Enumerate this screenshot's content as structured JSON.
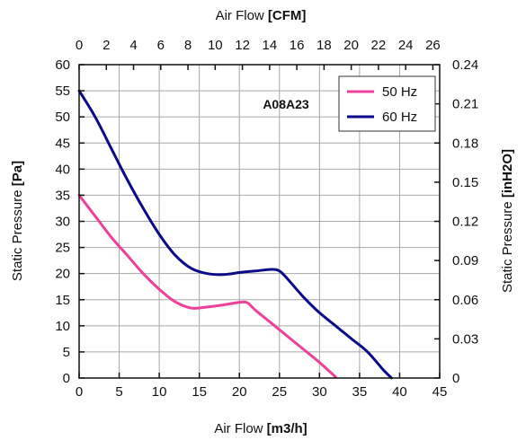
{
  "chart_data": {
    "type": "line",
    "title": "A08A23",
    "x_bottom": {
      "label": "Air Flow",
      "unit": "[m3/h]",
      "range": [
        0,
        45
      ],
      "ticks": [
        0,
        5,
        10,
        15,
        20,
        25,
        30,
        35,
        40,
        45
      ]
    },
    "x_top": {
      "label": "Air Flow",
      "unit": "[CFM]",
      "range": [
        0,
        26.5
      ],
      "ticks": [
        0,
        2,
        4,
        6,
        8,
        10,
        12,
        14,
        16,
        18,
        20,
        22,
        24,
        26
      ]
    },
    "y_left": {
      "label": "Static Pressure",
      "unit": "[Pa]",
      "range": [
        0,
        60
      ],
      "ticks": [
        0,
        5,
        10,
        15,
        20,
        25,
        30,
        35,
        40,
        45,
        50,
        55,
        60
      ]
    },
    "y_right": {
      "label": "Static Pressure",
      "unit": "[inH2O]",
      "range": [
        0,
        0.24
      ],
      "ticks": [
        "0",
        "0.03",
        "0.06",
        "0.09",
        "0.12",
        "0.15",
        "0.18",
        "0.21",
        "0.24"
      ]
    },
    "grid": true,
    "legend_position": "top-right",
    "series": [
      {
        "name": "50 Hz",
        "color": "#ee3f9a",
        "points": [
          [
            0,
            35
          ],
          [
            2,
            31
          ],
          [
            4,
            27
          ],
          [
            6,
            23.5
          ],
          [
            8,
            20
          ],
          [
            10,
            17
          ],
          [
            12,
            14.6
          ],
          [
            14,
            13.4
          ],
          [
            16,
            13.6
          ],
          [
            18,
            14
          ],
          [
            20,
            14.5
          ],
          [
            21,
            14.4
          ],
          [
            22,
            13
          ],
          [
            24,
            10.5
          ],
          [
            26,
            8
          ],
          [
            28,
            5.5
          ],
          [
            30,
            3
          ],
          [
            32,
            0.2
          ]
        ]
      },
      {
        "name": "60 Hz",
        "color": "#0a0a8a",
        "points": [
          [
            0,
            55
          ],
          [
            2,
            50
          ],
          [
            4,
            44
          ],
          [
            6,
            38
          ],
          [
            8,
            32.5
          ],
          [
            10,
            27.5
          ],
          [
            12,
            23.5
          ],
          [
            14,
            21
          ],
          [
            16,
            20
          ],
          [
            18,
            19.8
          ],
          [
            20,
            20.2
          ],
          [
            22,
            20.5
          ],
          [
            24,
            20.8
          ],
          [
            25,
            20.5
          ],
          [
            26,
            19
          ],
          [
            28,
            15.5
          ],
          [
            30,
            12.5
          ],
          [
            32,
            10
          ],
          [
            34,
            7.5
          ],
          [
            36,
            5
          ],
          [
            38,
            1.5
          ],
          [
            39,
            0
          ]
        ]
      }
    ]
  }
}
